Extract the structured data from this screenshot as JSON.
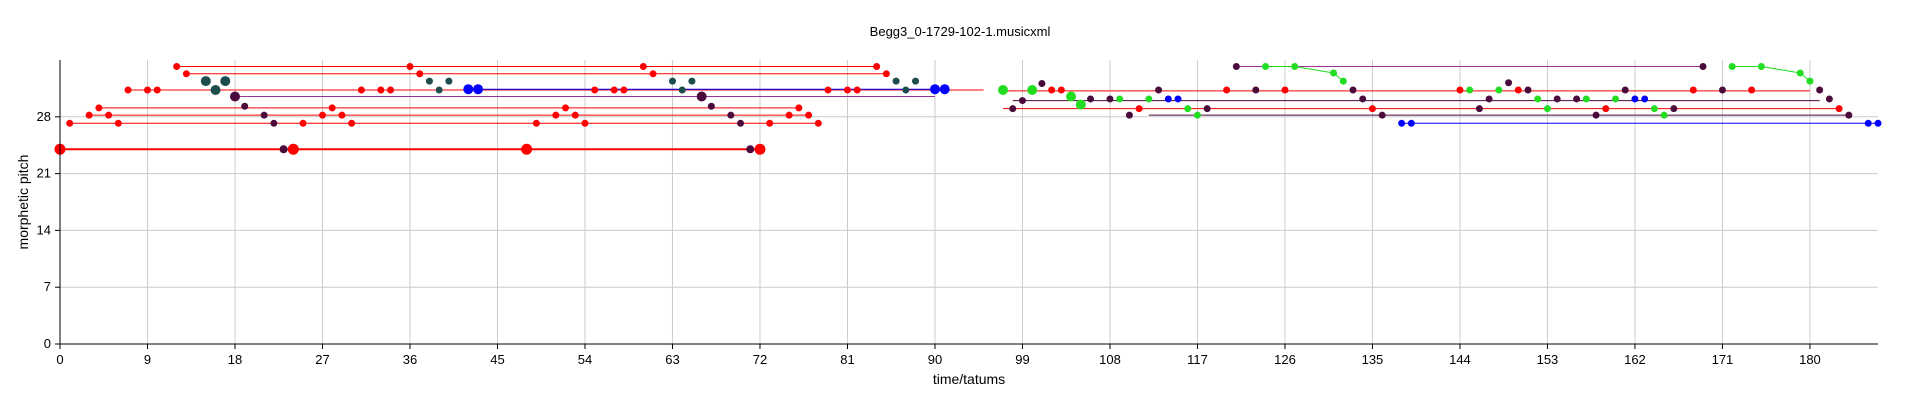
{
  "chart_data": {
    "type": "scatter",
    "title": "Begg3_0-1729-102-1.musicxml",
    "xlabel": "time/tatums",
    "ylabel": "morphetic pitch",
    "xlim": [
      0,
      187
    ],
    "ylim": [
      0,
      35
    ],
    "xticks": [
      "0",
      "9",
      "18",
      "27",
      "36",
      "45",
      "54",
      "63",
      "72",
      "81",
      "90",
      "99",
      "108",
      "117",
      "126",
      "135",
      "144",
      "153",
      "162",
      "171",
      "180"
    ],
    "yticks": [
      "0",
      "7",
      "14",
      "21",
      "28"
    ],
    "grid": true,
    "colors": {
      "red": "#ff0000",
      "dark": "#4a0a3c",
      "teal": "#1e4d4d",
      "blue": "#0000ff",
      "green": "#22dd22",
      "purple": "#993399"
    },
    "segments": [
      {
        "color": "red",
        "width": 2,
        "x1": 0,
        "y1": 24,
        "x2": 72,
        "y2": 24
      },
      {
        "color": "red",
        "width": 1,
        "x1": 1,
        "y1": 27.2,
        "x2": 78,
        "y2": 27.2
      },
      {
        "color": "red",
        "width": 1,
        "x1": 3,
        "y1": 28.2,
        "x2": 77,
        "y2": 28.2
      },
      {
        "color": "red",
        "width": 1,
        "x1": 4,
        "y1": 29.1,
        "x2": 76,
        "y2": 29.1
      },
      {
        "color": "red",
        "width": 1,
        "x1": 7,
        "y1": 31.3,
        "x2": 95,
        "y2": 31.3
      },
      {
        "color": "red",
        "width": 1,
        "x1": 12,
        "y1": 34.2,
        "x2": 84,
        "y2": 34.2
      },
      {
        "color": "red",
        "width": 1,
        "x1": 13,
        "y1": 33.3,
        "x2": 85,
        "y2": 33.3
      },
      {
        "color": "purple",
        "width": 1,
        "x1": 18,
        "y1": 30.5,
        "x2": 90,
        "y2": 30.5
      },
      {
        "color": "blue",
        "width": 1,
        "x1": 42,
        "y1": 31.4,
        "x2": 91,
        "y2": 31.4
      },
      {
        "color": "red",
        "width": 1,
        "x1": 97,
        "y1": 31.2,
        "x2": 180,
        "y2": 31.2
      },
      {
        "color": "red",
        "width": 1,
        "x1": 97,
        "y1": 29.0,
        "x2": 183,
        "y2": 29.0
      },
      {
        "color": "dark",
        "width": 1,
        "x1": 98,
        "y1": 30.0,
        "x2": 181,
        "y2": 30.0
      },
      {
        "color": "purple",
        "width": 1,
        "x1": 121,
        "y1": 34.2,
        "x2": 169,
        "y2": 34.2
      },
      {
        "color": "blue",
        "width": 1,
        "x1": 138,
        "y1": 27.2,
        "x2": 187,
        "y2": 27.2
      },
      {
        "color": "dark",
        "width": 1,
        "x1": 112,
        "y1": 28.2,
        "x2": 184,
        "y2": 28.2
      }
    ],
    "paths": [
      {
        "color": "green",
        "points": [
          [
            124,
            34.2
          ],
          [
            127,
            34.2
          ],
          [
            131,
            33.4
          ],
          [
            132,
            32.4
          ]
        ]
      },
      {
        "color": "green",
        "points": [
          [
            172,
            34.2
          ],
          [
            175,
            34.2
          ],
          [
            179,
            33.4
          ],
          [
            180,
            32.4
          ]
        ]
      }
    ],
    "points": [
      {
        "x": 0,
        "y": 24,
        "r": 5.5,
        "c": "red"
      },
      {
        "x": 23,
        "y": 24,
        "r": 4,
        "c": "dark"
      },
      {
        "x": 24,
        "y": 24,
        "r": 5.5,
        "c": "red"
      },
      {
        "x": 48,
        "y": 24,
        "r": 5.5,
        "c": "red"
      },
      {
        "x": 71,
        "y": 24,
        "r": 4,
        "c": "dark"
      },
      {
        "x": 72,
        "y": 24,
        "r": 5.5,
        "c": "red"
      },
      {
        "x": 1,
        "y": 27.2,
        "c": "red"
      },
      {
        "x": 3,
        "y": 28.2,
        "c": "red"
      },
      {
        "x": 4,
        "y": 29.1,
        "c": "red"
      },
      {
        "x": 5,
        "y": 28.2,
        "c": "red"
      },
      {
        "x": 6,
        "y": 27.2,
        "c": "red"
      },
      {
        "x": 7,
        "y": 31.3,
        "c": "red"
      },
      {
        "x": 9,
        "y": 31.3,
        "c": "red"
      },
      {
        "x": 10,
        "y": 31.3,
        "c": "red"
      },
      {
        "x": 12,
        "y": 34.2,
        "c": "red"
      },
      {
        "x": 13,
        "y": 33.3,
        "c": "red"
      },
      {
        "x": 15,
        "y": 32.4,
        "r": 5,
        "c": "teal"
      },
      {
        "x": 16,
        "y": 31.3,
        "r": 5,
        "c": "teal"
      },
      {
        "x": 17,
        "y": 32.4,
        "r": 5,
        "c": "teal"
      },
      {
        "x": 18,
        "y": 30.5,
        "r": 5,
        "c": "dark"
      },
      {
        "x": 19,
        "y": 29.3,
        "c": "dark"
      },
      {
        "x": 21,
        "y": 28.2,
        "c": "dark"
      },
      {
        "x": 22,
        "y": 27.2,
        "c": "dark"
      },
      {
        "x": 25,
        "y": 27.2,
        "c": "red"
      },
      {
        "x": 27,
        "y": 28.2,
        "c": "red"
      },
      {
        "x": 28,
        "y": 29.1,
        "c": "red"
      },
      {
        "x": 29,
        "y": 28.2,
        "c": "red"
      },
      {
        "x": 30,
        "y": 27.2,
        "c": "red"
      },
      {
        "x": 31,
        "y": 31.3,
        "c": "red"
      },
      {
        "x": 33,
        "y": 31.3,
        "c": "red"
      },
      {
        "x": 34,
        "y": 31.3,
        "c": "red"
      },
      {
        "x": 36,
        "y": 34.2,
        "c": "red"
      },
      {
        "x": 37,
        "y": 33.3,
        "c": "red"
      },
      {
        "x": 38,
        "y": 32.4,
        "c": "teal"
      },
      {
        "x": 39,
        "y": 31.3,
        "c": "teal"
      },
      {
        "x": 40,
        "y": 32.4,
        "c": "teal"
      },
      {
        "x": 42,
        "y": 31.4,
        "r": 5,
        "c": "blue"
      },
      {
        "x": 43,
        "y": 31.4,
        "r": 5,
        "c": "blue"
      },
      {
        "x": 49,
        "y": 27.2,
        "c": "red"
      },
      {
        "x": 51,
        "y": 28.2,
        "c": "red"
      },
      {
        "x": 52,
        "y": 29.1,
        "c": "red"
      },
      {
        "x": 53,
        "y": 28.2,
        "c": "red"
      },
      {
        "x": 54,
        "y": 27.2,
        "c": "red"
      },
      {
        "x": 55,
        "y": 31.3,
        "c": "red"
      },
      {
        "x": 57,
        "y": 31.3,
        "c": "red"
      },
      {
        "x": 58,
        "y": 31.3,
        "c": "red"
      },
      {
        "x": 60,
        "y": 34.2,
        "c": "red"
      },
      {
        "x": 61,
        "y": 33.3,
        "c": "red"
      },
      {
        "x": 63,
        "y": 32.4,
        "c": "teal"
      },
      {
        "x": 64,
        "y": 31.3,
        "c": "teal"
      },
      {
        "x": 65,
        "y": 32.4,
        "c": "teal"
      },
      {
        "x": 66,
        "y": 30.5,
        "r": 5,
        "c": "dark"
      },
      {
        "x": 67,
        "y": 29.3,
        "c": "dark"
      },
      {
        "x": 69,
        "y": 28.2,
        "c": "dark"
      },
      {
        "x": 70,
        "y": 27.2,
        "c": "dark"
      },
      {
        "x": 73,
        "y": 27.2,
        "c": "red"
      },
      {
        "x": 75,
        "y": 28.2,
        "c": "red"
      },
      {
        "x": 76,
        "y": 29.1,
        "c": "red"
      },
      {
        "x": 77,
        "y": 28.2,
        "c": "red"
      },
      {
        "x": 78,
        "y": 27.2,
        "c": "red"
      },
      {
        "x": 79,
        "y": 31.3,
        "c": "red"
      },
      {
        "x": 81,
        "y": 31.3,
        "c": "red"
      },
      {
        "x": 82,
        "y": 31.3,
        "c": "red"
      },
      {
        "x": 84,
        "y": 34.2,
        "c": "red"
      },
      {
        "x": 85,
        "y": 33.3,
        "c": "red"
      },
      {
        "x": 86,
        "y": 32.4,
        "c": "teal"
      },
      {
        "x": 87,
        "y": 31.3,
        "c": "teal"
      },
      {
        "x": 88,
        "y": 32.4,
        "c": "teal"
      },
      {
        "x": 90,
        "y": 31.4,
        "r": 5,
        "c": "blue"
      },
      {
        "x": 91,
        "y": 31.4,
        "r": 5,
        "c": "blue"
      },
      {
        "x": 97,
        "y": 31.3,
        "r": 5,
        "c": "green"
      },
      {
        "x": 98,
        "y": 29.0,
        "c": "dark"
      },
      {
        "x": 99,
        "y": 30.0,
        "c": "dark"
      },
      {
        "x": 100,
        "y": 31.3,
        "r": 5,
        "c": "green"
      },
      {
        "x": 101,
        "y": 32.1,
        "c": "dark"
      },
      {
        "x": 102,
        "y": 31.3,
        "c": "red"
      },
      {
        "x": 103,
        "y": 31.3,
        "c": "red"
      },
      {
        "x": 104,
        "y": 30.5,
        "r": 5,
        "c": "green"
      },
      {
        "x": 105,
        "y": 29.5,
        "r": 5,
        "c": "green"
      },
      {
        "x": 106,
        "y": 30.2,
        "c": "dark"
      },
      {
        "x": 108,
        "y": 30.2,
        "c": "dark"
      },
      {
        "x": 109,
        "y": 30.2,
        "c": "green"
      },
      {
        "x": 110,
        "y": 28.2,
        "c": "dark"
      },
      {
        "x": 111,
        "y": 29.0,
        "c": "red"
      },
      {
        "x": 112,
        "y": 30.2,
        "c": "green"
      },
      {
        "x": 113,
        "y": 31.3,
        "c": "dark"
      },
      {
        "x": 114,
        "y": 30.2,
        "c": "blue"
      },
      {
        "x": 115,
        "y": 30.2,
        "c": "blue"
      },
      {
        "x": 116,
        "y": 29.0,
        "c": "green"
      },
      {
        "x": 117,
        "y": 28.2,
        "c": "green"
      },
      {
        "x": 118,
        "y": 29.0,
        "c": "dark"
      },
      {
        "x": 120,
        "y": 31.3,
        "c": "red"
      },
      {
        "x": 121,
        "y": 34.2,
        "c": "dark"
      },
      {
        "x": 123,
        "y": 31.3,
        "c": "dark"
      },
      {
        "x": 124,
        "y": 34.2,
        "c": "green"
      },
      {
        "x": 126,
        "y": 31.3,
        "c": "red"
      },
      {
        "x": 127,
        "y": 34.2,
        "c": "green"
      },
      {
        "x": 131,
        "y": 33.4,
        "c": "green"
      },
      {
        "x": 132,
        "y": 32.4,
        "c": "green"
      },
      {
        "x": 133,
        "y": 31.3,
        "c": "dark"
      },
      {
        "x": 134,
        "y": 30.2,
        "c": "dark"
      },
      {
        "x": 135,
        "y": 29.0,
        "c": "red"
      },
      {
        "x": 136,
        "y": 28.2,
        "c": "dark"
      },
      {
        "x": 138,
        "y": 27.2,
        "c": "blue"
      },
      {
        "x": 139,
        "y": 27.2,
        "c": "blue"
      },
      {
        "x": 144,
        "y": 31.3,
        "c": "red"
      },
      {
        "x": 145,
        "y": 31.3,
        "c": "green"
      },
      {
        "x": 146,
        "y": 29.0,
        "c": "dark"
      },
      {
        "x": 147,
        "y": 30.2,
        "c": "dark"
      },
      {
        "x": 148,
        "y": 31.3,
        "c": "green"
      },
      {
        "x": 149,
        "y": 32.2,
        "c": "dark"
      },
      {
        "x": 150,
        "y": 31.3,
        "c": "red"
      },
      {
        "x": 151,
        "y": 31.3,
        "c": "dark"
      },
      {
        "x": 152,
        "y": 30.2,
        "c": "green"
      },
      {
        "x": 153,
        "y": 29.0,
        "c": "green"
      },
      {
        "x": 154,
        "y": 30.2,
        "c": "dark"
      },
      {
        "x": 156,
        "y": 30.2,
        "c": "dark"
      },
      {
        "x": 157,
        "y": 30.2,
        "c": "green"
      },
      {
        "x": 158,
        "y": 28.2,
        "c": "dark"
      },
      {
        "x": 159,
        "y": 29.0,
        "c": "red"
      },
      {
        "x": 160,
        "y": 30.2,
        "c": "green"
      },
      {
        "x": 161,
        "y": 31.3,
        "c": "dark"
      },
      {
        "x": 162,
        "y": 30.2,
        "c": "blue"
      },
      {
        "x": 163,
        "y": 30.2,
        "c": "blue"
      },
      {
        "x": 164,
        "y": 29.0,
        "c": "green"
      },
      {
        "x": 165,
        "y": 28.2,
        "c": "green"
      },
      {
        "x": 166,
        "y": 29.0,
        "c": "dark"
      },
      {
        "x": 168,
        "y": 31.3,
        "c": "red"
      },
      {
        "x": 169,
        "y": 34.2,
        "c": "dark"
      },
      {
        "x": 171,
        "y": 31.3,
        "c": "dark"
      },
      {
        "x": 172,
        "y": 34.2,
        "c": "green"
      },
      {
        "x": 174,
        "y": 31.3,
        "c": "red"
      },
      {
        "x": 175,
        "y": 34.2,
        "c": "green"
      },
      {
        "x": 179,
        "y": 33.4,
        "c": "green"
      },
      {
        "x": 180,
        "y": 32.4,
        "c": "green"
      },
      {
        "x": 181,
        "y": 31.3,
        "c": "dark"
      },
      {
        "x": 182,
        "y": 30.2,
        "c": "dark"
      },
      {
        "x": 183,
        "y": 29.0,
        "c": "red"
      },
      {
        "x": 184,
        "y": 28.2,
        "c": "dark"
      },
      {
        "x": 186,
        "y": 27.2,
        "c": "blue"
      },
      {
        "x": 187,
        "y": 27.2,
        "c": "blue"
      }
    ]
  }
}
